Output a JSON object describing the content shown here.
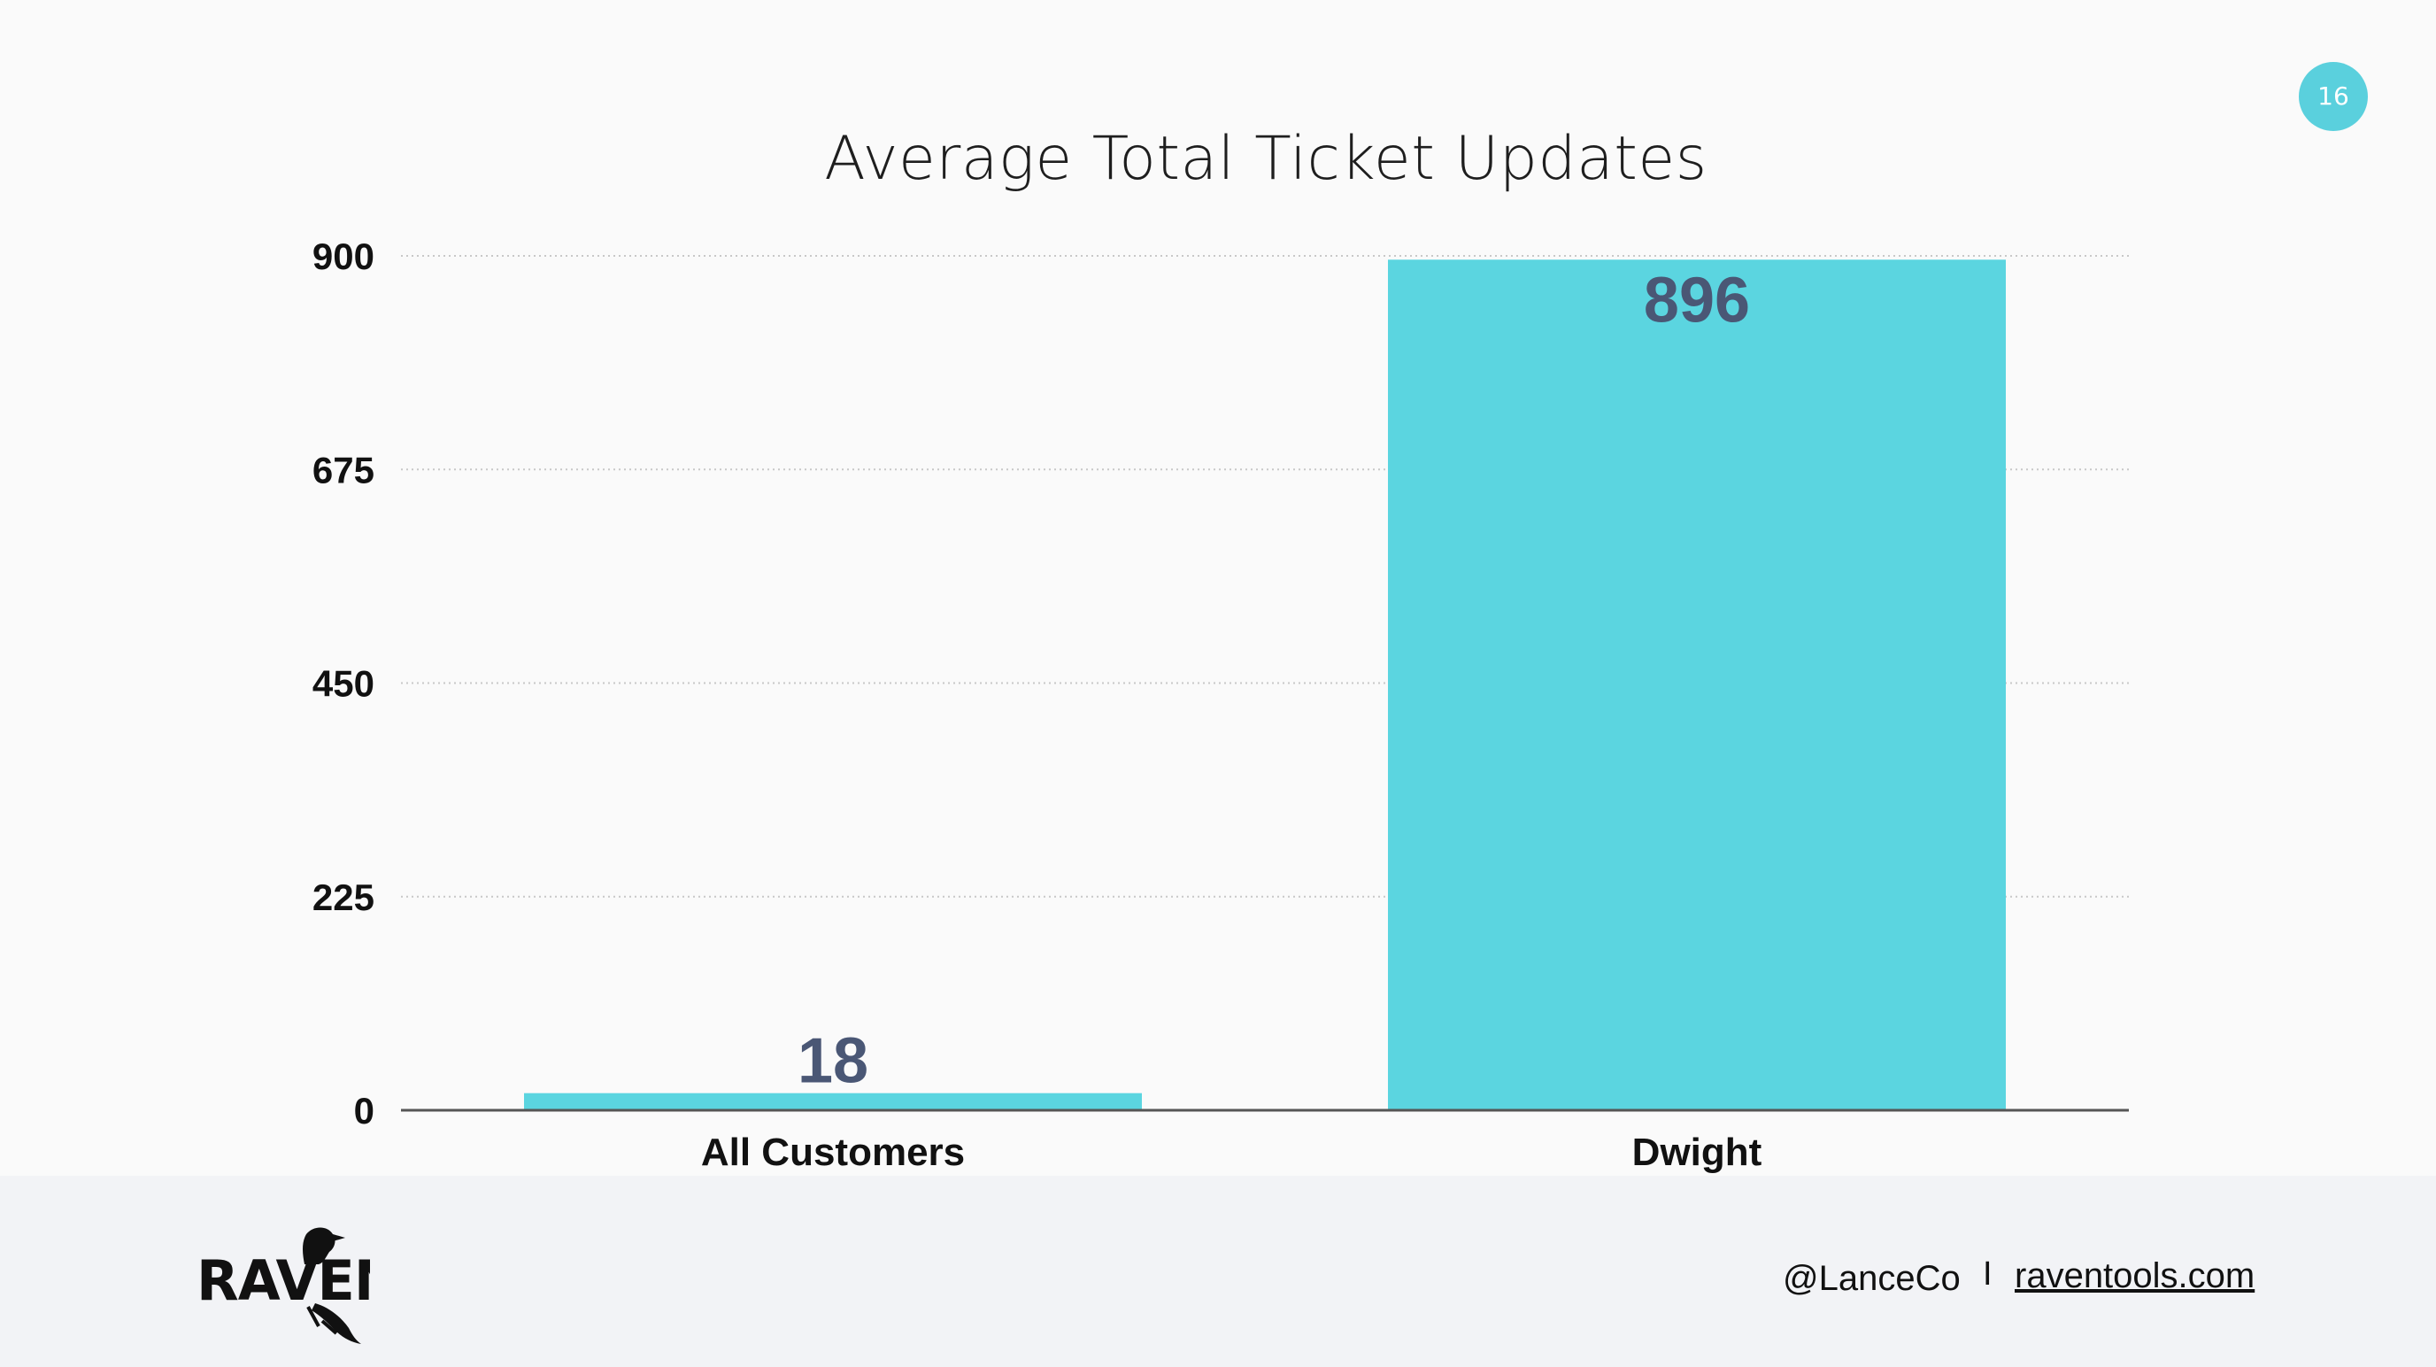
{
  "slide": {
    "page_number": "16",
    "footer": {
      "handle": "@LanceCo",
      "separator": "I",
      "site": "raventools.com"
    },
    "logo_text": "RAVEN"
  },
  "colors": {
    "bar": "#5bd5e0",
    "value_label": "#4a5775",
    "badge": "#5ad0dd",
    "grid": "#c8c8c8",
    "axis": "#555555"
  },
  "chart_data": {
    "type": "bar",
    "title": "Average Total Ticket Updates",
    "categories": [
      "All Customers",
      "Dwight"
    ],
    "values": [
      18,
      896
    ],
    "data_labels": [
      "18",
      "896"
    ],
    "ylim": [
      0,
      900
    ],
    "yticks": [
      0,
      225,
      450,
      675,
      900
    ],
    "ytick_labels": [
      "0",
      "225",
      "450",
      "675",
      "900"
    ],
    "xlabel": "",
    "ylabel": "",
    "grid": true,
    "grid_style": "dotted",
    "legend": "none"
  }
}
